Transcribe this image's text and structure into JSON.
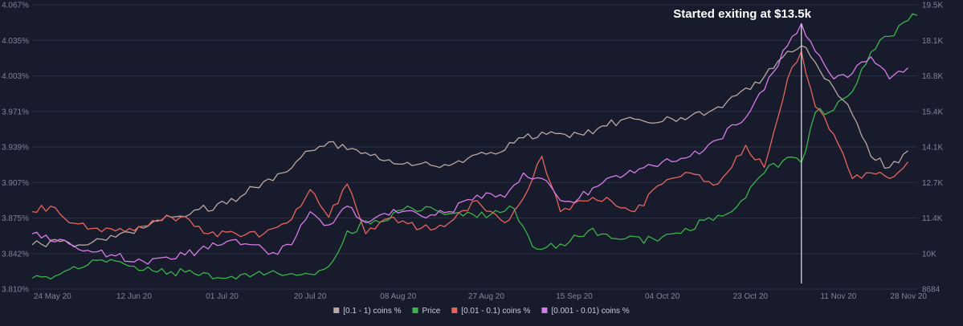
{
  "chart_data": {
    "type": "line",
    "annotation": {
      "text": "Started exiting at $13.5k",
      "date": "2020-11-03"
    },
    "y_left": {
      "ticks": [
        "4.067%",
        "4.035%",
        "4.003%",
        "3.971%",
        "3.939%",
        "3.907%",
        "3.875%",
        "3.842%",
        "3.810%"
      ],
      "range": [
        3.81,
        4.067
      ]
    },
    "y_right": {
      "ticks": [
        "19.5K",
        "18.1K",
        "16.8K",
        "15.4K",
        "14.1K",
        "12.7K",
        "11.4K",
        "10K",
        "8684"
      ],
      "range": [
        8684,
        19500
      ]
    },
    "x_axis": {
      "start": "2020-05-21",
      "end": "2020-11-28",
      "ticks": [
        {
          "label": "24 May 20",
          "date": "2020-05-24"
        },
        {
          "label": "12 Jun 20",
          "date": "2020-06-12"
        },
        {
          "label": "01 Jul 20",
          "date": "2020-07-01"
        },
        {
          "label": "20 Jul 20",
          "date": "2020-07-20"
        },
        {
          "label": "08 Aug 20",
          "date": "2020-08-08"
        },
        {
          "label": "27 Aug 20",
          "date": "2020-08-27"
        },
        {
          "label": "15 Sep 20",
          "date": "2020-09-15"
        },
        {
          "label": "04 Oct 20",
          "date": "2020-10-04"
        },
        {
          "label": "23 Oct 20",
          "date": "2020-10-23"
        },
        {
          "label": "11 Nov 20",
          "date": "2020-11-11"
        },
        {
          "label": "28 Nov 20",
          "date": "2020-11-28"
        }
      ]
    },
    "series": [
      {
        "name": "[0.1 - 1) coins %",
        "axis": "left",
        "color": "#b9a9a5",
        "points": [
          [
            "2020-05-21",
            3.85
          ],
          [
            "2020-05-27",
            3.853
          ],
          [
            "2020-06-02",
            3.85
          ],
          [
            "2020-06-08",
            3.857
          ],
          [
            "2020-06-14",
            3.865
          ],
          [
            "2020-06-20",
            3.875
          ],
          [
            "2020-06-26",
            3.882
          ],
          [
            "2020-07-02",
            3.887
          ],
          [
            "2020-07-08",
            3.902
          ],
          [
            "2020-07-14",
            3.915
          ],
          [
            "2020-07-20",
            3.935
          ],
          [
            "2020-07-24",
            3.943
          ],
          [
            "2020-07-28",
            3.936
          ],
          [
            "2020-08-03",
            3.932
          ],
          [
            "2020-08-09",
            3.923
          ],
          [
            "2020-08-15",
            3.922
          ],
          [
            "2020-08-21",
            3.926
          ],
          [
            "2020-08-27",
            3.932
          ],
          [
            "2020-09-02",
            3.942
          ],
          [
            "2020-09-08",
            3.952
          ],
          [
            "2020-09-14",
            3.947
          ],
          [
            "2020-09-20",
            3.955
          ],
          [
            "2020-09-26",
            3.964
          ],
          [
            "2020-10-02",
            3.96
          ],
          [
            "2020-10-08",
            3.965
          ],
          [
            "2020-10-14",
            3.97
          ],
          [
            "2020-10-20",
            3.985
          ],
          [
            "2020-10-26",
            4.002
          ],
          [
            "2020-10-31",
            4.025
          ],
          [
            "2020-11-03",
            4.03
          ],
          [
            "2020-11-06",
            4.015
          ],
          [
            "2020-11-10",
            3.992
          ],
          [
            "2020-11-14",
            3.968
          ],
          [
            "2020-11-18",
            3.93
          ],
          [
            "2020-11-22",
            3.92
          ],
          [
            "2020-11-26",
            3.935
          ]
        ]
      },
      {
        "name": "Price",
        "axis": "right",
        "color": "#3ab54a",
        "points": [
          [
            "2020-05-21",
            9100
          ],
          [
            "2020-05-27",
            9250
          ],
          [
            "2020-06-02",
            9600
          ],
          [
            "2020-06-08",
            9750
          ],
          [
            "2020-06-14",
            9400
          ],
          [
            "2020-06-20",
            9350
          ],
          [
            "2020-06-26",
            9200
          ],
          [
            "2020-07-02",
            9100
          ],
          [
            "2020-07-08",
            9250
          ],
          [
            "2020-07-14",
            9200
          ],
          [
            "2020-07-20",
            9250
          ],
          [
            "2020-07-24",
            9550
          ],
          [
            "2020-07-28",
            10900
          ],
          [
            "2020-08-03",
            11300
          ],
          [
            "2020-08-09",
            11700
          ],
          [
            "2020-08-15",
            11800
          ],
          [
            "2020-08-21",
            11600
          ],
          [
            "2020-08-27",
            11400
          ],
          [
            "2020-09-02",
            11750
          ],
          [
            "2020-09-06",
            10300
          ],
          [
            "2020-09-12",
            10400
          ],
          [
            "2020-09-18",
            10900
          ],
          [
            "2020-09-24",
            10600
          ],
          [
            "2020-10-02",
            10600
          ],
          [
            "2020-10-08",
            10800
          ],
          [
            "2020-10-14",
            11400
          ],
          [
            "2020-10-20",
            11800
          ],
          [
            "2020-10-26",
            13100
          ],
          [
            "2020-10-31",
            13700
          ],
          [
            "2020-11-03",
            13500
          ],
          [
            "2020-11-06",
            15400
          ],
          [
            "2020-11-10",
            15500
          ],
          [
            "2020-11-14",
            16200
          ],
          [
            "2020-11-18",
            17700
          ],
          [
            "2020-11-22",
            18300
          ],
          [
            "2020-11-26",
            18900
          ],
          [
            "2020-11-28",
            19100
          ]
        ]
      },
      {
        "name": "[0.01 - 0.1) coins %",
        "axis": "left",
        "color": "#e8655e",
        "points": [
          [
            "2020-05-21",
            3.88
          ],
          [
            "2020-05-25",
            3.885
          ],
          [
            "2020-05-29",
            3.87
          ],
          [
            "2020-06-04",
            3.865
          ],
          [
            "2020-06-10",
            3.862
          ],
          [
            "2020-06-16",
            3.872
          ],
          [
            "2020-06-22",
            3.875
          ],
          [
            "2020-06-28",
            3.86
          ],
          [
            "2020-07-04",
            3.86
          ],
          [
            "2020-07-10",
            3.86
          ],
          [
            "2020-07-16",
            3.873
          ],
          [
            "2020-07-20",
            3.9
          ],
          [
            "2020-07-24",
            3.875
          ],
          [
            "2020-07-28",
            3.905
          ],
          [
            "2020-08-01",
            3.86
          ],
          [
            "2020-08-07",
            3.875
          ],
          [
            "2020-08-13",
            3.865
          ],
          [
            "2020-08-19",
            3.87
          ],
          [
            "2020-08-25",
            3.89
          ],
          [
            "2020-08-31",
            3.87
          ],
          [
            "2020-09-04",
            3.892
          ],
          [
            "2020-09-08",
            3.93
          ],
          [
            "2020-09-12",
            3.88
          ],
          [
            "2020-09-16",
            3.89
          ],
          [
            "2020-09-22",
            3.893
          ],
          [
            "2020-09-28",
            3.88
          ],
          [
            "2020-10-04",
            3.905
          ],
          [
            "2020-10-10",
            3.915
          ],
          [
            "2020-10-16",
            3.905
          ],
          [
            "2020-10-22",
            3.94
          ],
          [
            "2020-10-26",
            3.92
          ],
          [
            "2020-10-31",
            4.0
          ],
          [
            "2020-11-03",
            4.025
          ],
          [
            "2020-11-06",
            3.975
          ],
          [
            "2020-11-10",
            3.95
          ],
          [
            "2020-11-14",
            3.91
          ],
          [
            "2020-11-18",
            3.915
          ],
          [
            "2020-11-22",
            3.91
          ],
          [
            "2020-11-26",
            3.925
          ]
        ]
      },
      {
        "name": "[0.001 - 0.01) coins %",
        "axis": "left",
        "color": "#d67ce8",
        "points": [
          [
            "2020-05-21",
            3.86
          ],
          [
            "2020-05-27",
            3.855
          ],
          [
            "2020-06-02",
            3.845
          ],
          [
            "2020-06-08",
            3.84
          ],
          [
            "2020-06-14",
            3.835
          ],
          [
            "2020-06-20",
            3.837
          ],
          [
            "2020-06-26",
            3.845
          ],
          [
            "2020-07-02",
            3.853
          ],
          [
            "2020-07-08",
            3.85
          ],
          [
            "2020-07-12",
            3.843
          ],
          [
            "2020-07-16",
            3.85
          ],
          [
            "2020-07-20",
            3.88
          ],
          [
            "2020-07-24",
            3.868
          ],
          [
            "2020-07-28",
            3.885
          ],
          [
            "2020-08-01",
            3.87
          ],
          [
            "2020-08-07",
            3.882
          ],
          [
            "2020-08-13",
            3.876
          ],
          [
            "2020-08-19",
            3.88
          ],
          [
            "2020-08-25",
            3.895
          ],
          [
            "2020-08-31",
            3.893
          ],
          [
            "2020-09-04",
            3.915
          ],
          [
            "2020-09-08",
            3.91
          ],
          [
            "2020-09-12",
            3.89
          ],
          [
            "2020-09-16",
            3.892
          ],
          [
            "2020-09-22",
            3.91
          ],
          [
            "2020-09-28",
            3.915
          ],
          [
            "2020-10-04",
            3.925
          ],
          [
            "2020-10-10",
            3.93
          ],
          [
            "2020-10-16",
            3.945
          ],
          [
            "2020-10-22",
            3.965
          ],
          [
            "2020-10-26",
            3.99
          ],
          [
            "2020-10-31",
            4.03
          ],
          [
            "2020-11-03",
            4.05
          ],
          [
            "2020-11-06",
            4.025
          ],
          [
            "2020-11-10",
            4.0
          ],
          [
            "2020-11-14",
            4.005
          ],
          [
            "2020-11-18",
            4.02
          ],
          [
            "2020-11-22",
            4.0
          ],
          [
            "2020-11-26",
            4.01
          ]
        ]
      }
    ],
    "legend": {
      "position": "bottom-center",
      "order": [
        "[0.1 - 1) coins %",
        "Price",
        "[0.01 - 0.1) coins %",
        "[0.001 - 0.01) coins %"
      ]
    }
  }
}
